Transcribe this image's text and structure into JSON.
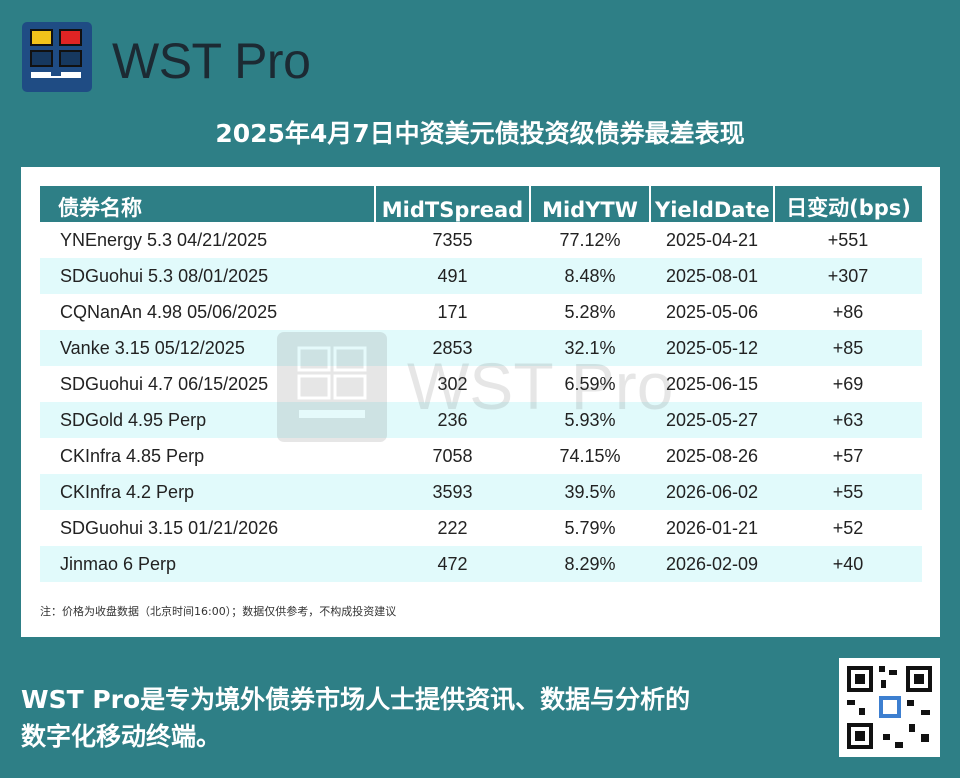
{
  "brand": {
    "name": "WST Pro"
  },
  "title": "2025年4月7日中资美元债投资级债券最差表现",
  "table": {
    "headers": [
      "债券名称",
      "MidTSpread",
      "MidYTW",
      "YieldDate",
      "日变动(bps)"
    ],
    "rows": [
      [
        "YNEnergy 5.3 04/21/2025",
        "7355",
        "77.12%",
        "2025-04-21",
        "+551"
      ],
      [
        "SDGuohui 5.3 08/01/2025",
        "491",
        "8.48%",
        "2025-08-01",
        "+307"
      ],
      [
        "CQNanAn 4.98 05/06/2025",
        "171",
        "5.28%",
        "2025-05-06",
        "+86"
      ],
      [
        "Vanke 3.15 05/12/2025",
        "2853",
        "32.1%",
        "2025-05-12",
        "+85"
      ],
      [
        "SDGuohui 4.7 06/15/2025",
        "302",
        "6.59%",
        "2025-06-15",
        "+69"
      ],
      [
        "SDGold 4.95 Perp",
        "236",
        "5.93%",
        "2025-05-27",
        "+63"
      ],
      [
        "CKInfra 4.85 Perp",
        "7058",
        "74.15%",
        "2025-08-26",
        "+57"
      ],
      [
        "CKInfra 4.2 Perp",
        "3593",
        "39.5%",
        "2026-06-02",
        "+55"
      ],
      [
        "SDGuohui 3.15 01/21/2026",
        "222",
        "5.79%",
        "2026-01-21",
        "+52"
      ],
      [
        "Jinmao 6 Perp",
        "472",
        "8.29%",
        "2026-02-09",
        "+40"
      ]
    ]
  },
  "note": "注：价格为收盘数据（北京时间16:00）；数据仅供参考，不构成投资建议",
  "footer": {
    "line1": "WST Pro是专为境外债券市场人士提供资讯、数据与分析的",
    "line2": "数字化移动终端。"
  },
  "watermark": "WST Pro",
  "colors": {
    "background": "#2e7f86",
    "header": "#2e7f86",
    "row_alt": "#e1fafb",
    "logo_bg": "#1f4c84",
    "logo_yellow": "#f2c31b",
    "logo_red": "#e02424"
  }
}
